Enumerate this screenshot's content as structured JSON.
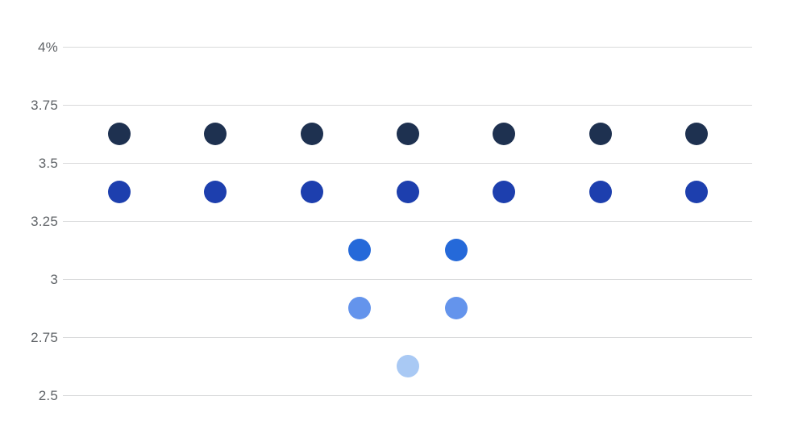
{
  "chart_data": {
    "type": "scatter",
    "subtype": "dot-plot",
    "title": "",
    "xlabel": "",
    "ylabel": "",
    "ylim": [
      2.5,
      4.0
    ],
    "grid": true,
    "legend": "none",
    "y_ticks": [
      {
        "label": "4%",
        "value": 4.0
      },
      {
        "label": "3.75",
        "value": 3.75
      },
      {
        "label": "3.5",
        "value": 3.5
      },
      {
        "label": "3.25",
        "value": 3.25
      },
      {
        "label": "3",
        "value": 3.0
      },
      {
        "label": "2.75",
        "value": 2.75
      },
      {
        "label": "2.5",
        "value": 2.5
      }
    ],
    "rows": [
      {
        "rate": 3.625,
        "count": 7,
        "color": "#1e3150"
      },
      {
        "rate": 3.375,
        "count": 7,
        "color": "#1d3fae"
      },
      {
        "rate": 3.125,
        "count": 2,
        "color": "#2569d9"
      },
      {
        "rate": 2.875,
        "count": 2,
        "color": "#6494ec"
      },
      {
        "rate": 2.625,
        "count": 1,
        "color": "#a9c9f4"
      }
    ],
    "total_dots": 19,
    "colors": {
      "gridline": "#d9dadb",
      "tick_label": "#606468",
      "background": "#ffffff"
    }
  }
}
